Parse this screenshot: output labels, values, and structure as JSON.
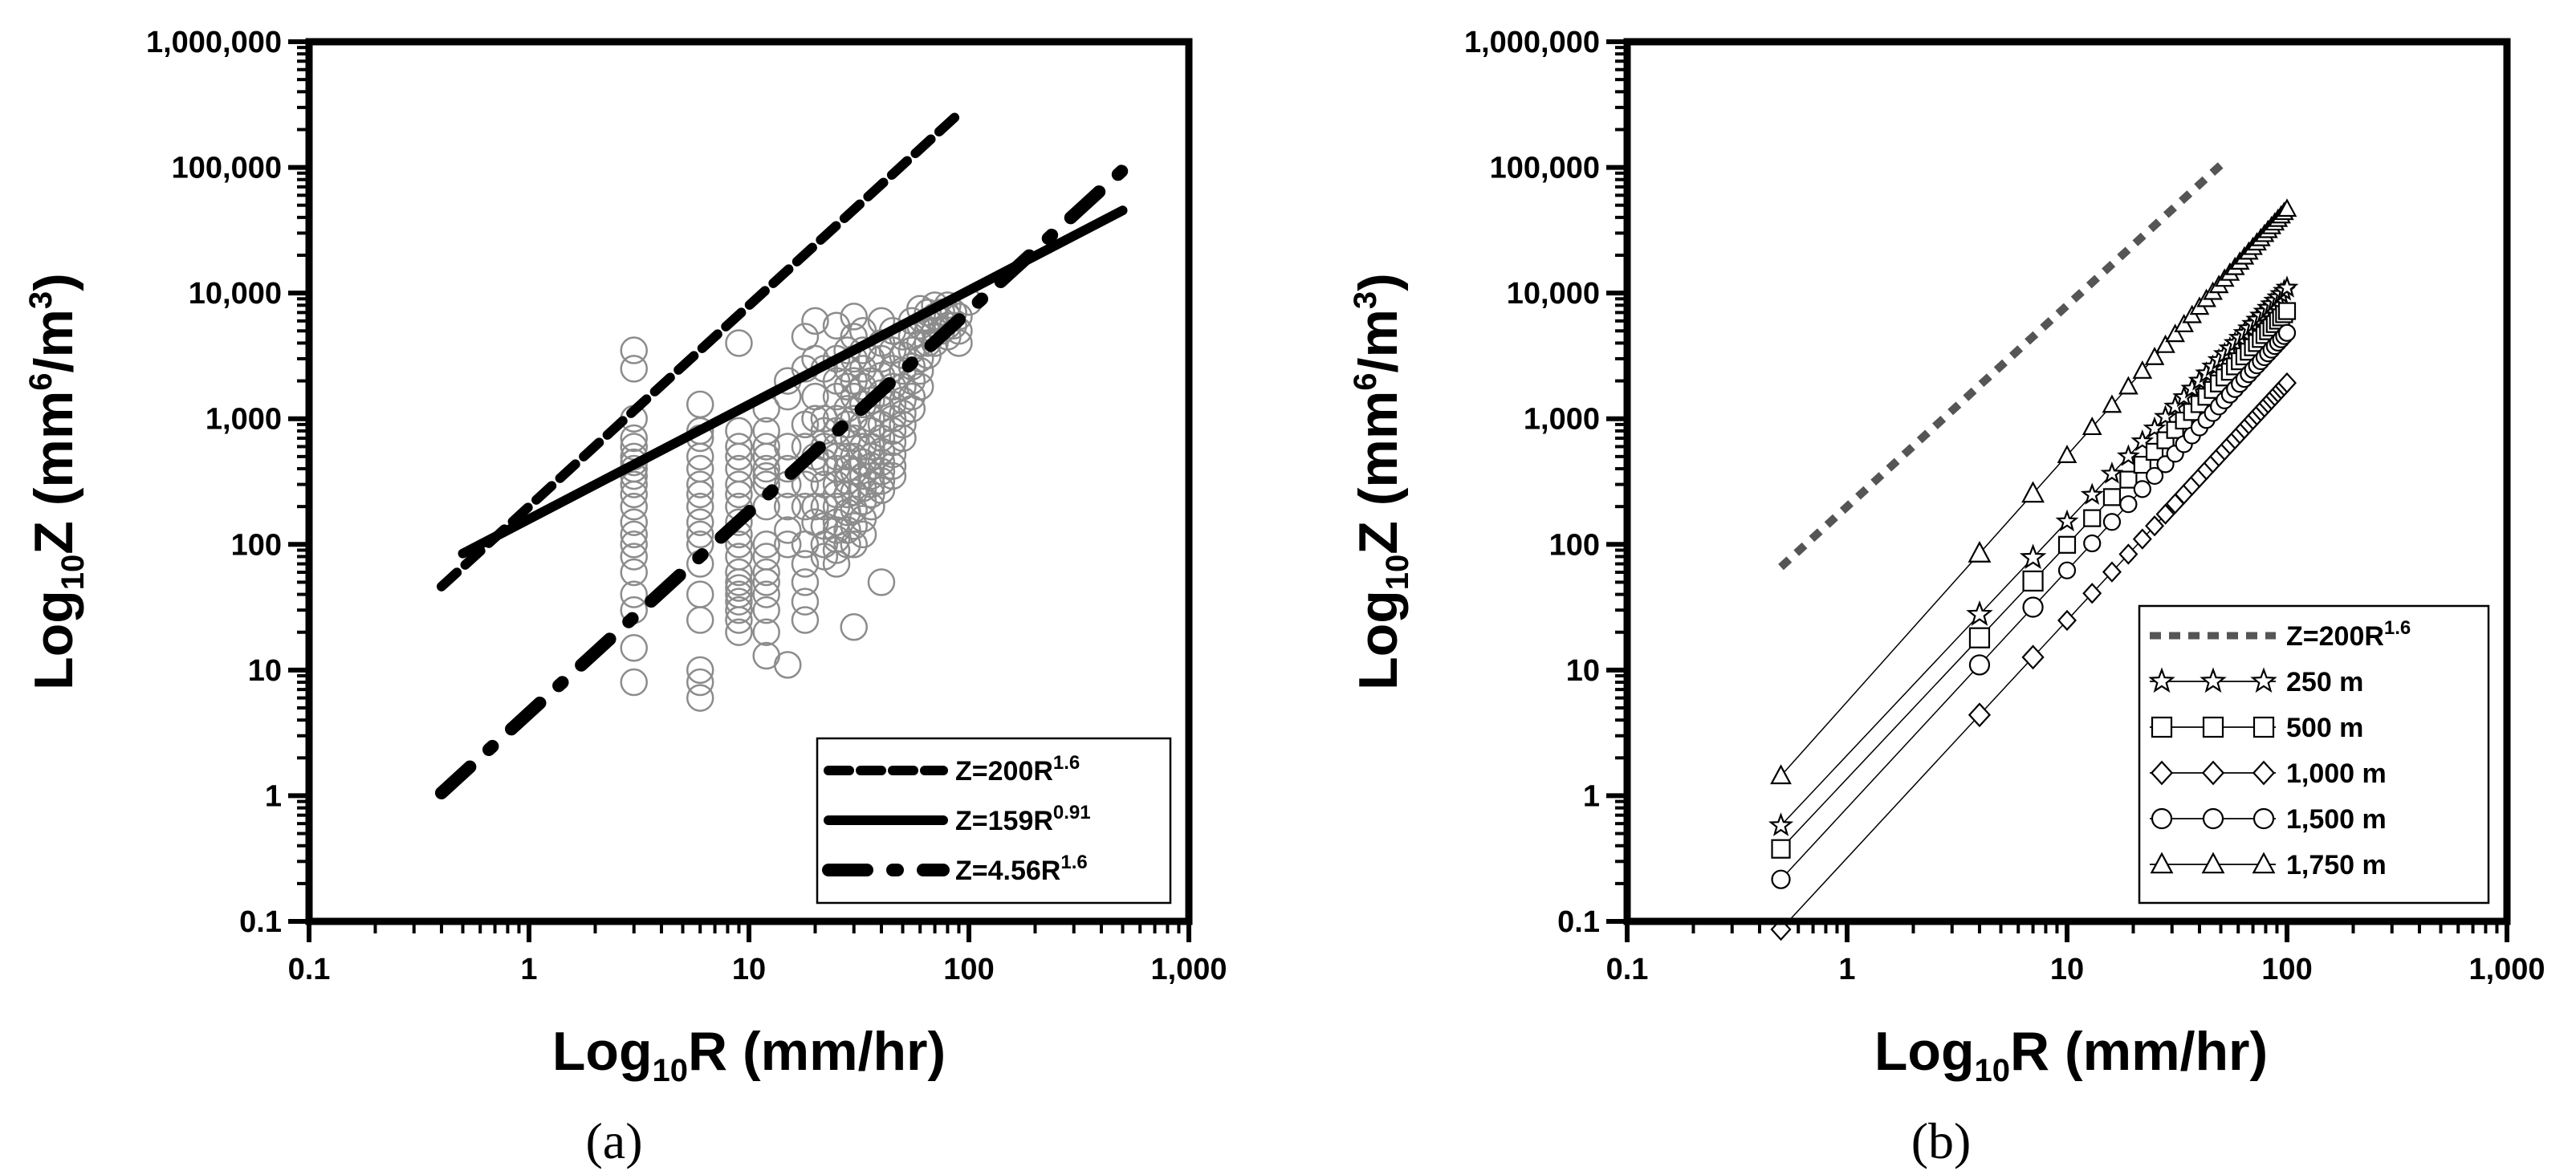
{
  "chart_data": [
    {
      "type": "scatter",
      "panel_label": "(a)",
      "xscale": "log",
      "yscale": "log",
      "xlim": [
        0.1,
        1000
      ],
      "ylim": [
        0.1,
        1000000
      ],
      "xlabel": {
        "base": "Log",
        "sub": "10",
        "rest": "R (mm/hr)"
      },
      "ylabel": {
        "base": "Log",
        "sub": "10",
        "rest1": "Z (mm",
        "sup1": "6",
        "rest2": "/m",
        "sup2": "3",
        "rest3": ")"
      },
      "x_ticks": [
        {
          "v": 0.1,
          "label": "0.1"
        },
        {
          "v": 1,
          "label": "1"
        },
        {
          "v": 10,
          "label": "10"
        },
        {
          "v": 100,
          "label": "100"
        },
        {
          "v": 1000,
          "label": "1,000"
        }
      ],
      "y_ticks": [
        {
          "v": 0.1,
          "label": "0.1"
        },
        {
          "v": 1,
          "label": "1"
        },
        {
          "v": 10,
          "label": "10"
        },
        {
          "v": 100,
          "label": "100"
        },
        {
          "v": 1000,
          "label": "1,000"
        },
        {
          "v": 10000,
          "label": "10,000"
        },
        {
          "v": 100000,
          "label": "100,000"
        },
        {
          "v": 1000000,
          "label": "1,000,000"
        }
      ],
      "legend_position": "bottom-right",
      "lines": [
        {
          "name": "Z=200R1.6",
          "label_main": "Z=200R",
          "label_sup": "1.6",
          "a": 200,
          "b": 1.6,
          "x_range": [
            0.4,
            90
          ],
          "style": "dash"
        },
        {
          "name": "Z=159R0.91",
          "label_main": "Z=159R",
          "label_sup": "0.91",
          "a": 159,
          "b": 0.91,
          "x_range": [
            0.5,
            500
          ],
          "style": "solid"
        },
        {
          "name": "Z=4.56R1.6",
          "label_main": "Z=4.56R",
          "label_sup": "1.6",
          "a": 4.56,
          "b": 1.6,
          "x_range": [
            0.4,
            500
          ],
          "style": "dashdot"
        }
      ],
      "scatter_points": [
        [
          3,
          3500
        ],
        [
          3,
          2500
        ],
        [
          3,
          1000
        ],
        [
          3,
          700
        ],
        [
          3,
          600
        ],
        [
          3,
          500
        ],
        [
          3,
          450
        ],
        [
          3,
          400
        ],
        [
          3,
          350
        ],
        [
          3,
          300
        ],
        [
          3,
          250
        ],
        [
          3,
          200
        ],
        [
          3,
          150
        ],
        [
          3,
          120
        ],
        [
          3,
          100
        ],
        [
          3,
          80
        ],
        [
          3,
          60
        ],
        [
          3,
          40
        ],
        [
          3,
          30
        ],
        [
          3,
          15
        ],
        [
          3,
          8
        ],
        [
          6,
          1300
        ],
        [
          6,
          800
        ],
        [
          6,
          700
        ],
        [
          6,
          500
        ],
        [
          6,
          400
        ],
        [
          6,
          300
        ],
        [
          6,
          250
        ],
        [
          6,
          200
        ],
        [
          6,
          150
        ],
        [
          6,
          120
        ],
        [
          6,
          100
        ],
        [
          6,
          70
        ],
        [
          6,
          40
        ],
        [
          6,
          25
        ],
        [
          6,
          10
        ],
        [
          6,
          8
        ],
        [
          6,
          6
        ],
        [
          9,
          4000
        ],
        [
          9,
          800
        ],
        [
          9,
          600
        ],
        [
          9,
          500
        ],
        [
          9,
          400
        ],
        [
          9,
          300
        ],
        [
          9,
          250
        ],
        [
          9,
          200
        ],
        [
          9,
          150
        ],
        [
          9,
          120
        ],
        [
          9,
          100
        ],
        [
          9,
          80
        ],
        [
          9,
          60
        ],
        [
          9,
          50
        ],
        [
          9,
          45
        ],
        [
          9,
          40
        ],
        [
          9,
          35
        ],
        [
          9,
          30
        ],
        [
          9,
          25
        ],
        [
          9,
          20
        ],
        [
          12,
          1200
        ],
        [
          12,
          800
        ],
        [
          12,
          600
        ],
        [
          12,
          500
        ],
        [
          12,
          400
        ],
        [
          12,
          350
        ],
        [
          12,
          300
        ],
        [
          12,
          200
        ],
        [
          12,
          100
        ],
        [
          12,
          80
        ],
        [
          12,
          60
        ],
        [
          12,
          50
        ],
        [
          12,
          40
        ],
        [
          12,
          30
        ],
        [
          12,
          20
        ],
        [
          12,
          13
        ],
        [
          15,
          2000
        ],
        [
          15,
          1500
        ],
        [
          15,
          600
        ],
        [
          15,
          400
        ],
        [
          15,
          300
        ],
        [
          15,
          200
        ],
        [
          15,
          130
        ],
        [
          15,
          100
        ],
        [
          15,
          11
        ],
        [
          18,
          4500
        ],
        [
          18,
          2500
        ],
        [
          18,
          900
        ],
        [
          18,
          600
        ],
        [
          18,
          300
        ],
        [
          18,
          200
        ],
        [
          18,
          100
        ],
        [
          18,
          70
        ],
        [
          18,
          50
        ],
        [
          18,
          35
        ],
        [
          18,
          25
        ],
        [
          20,
          6000
        ],
        [
          20,
          3000
        ],
        [
          20,
          1500
        ],
        [
          20,
          1000
        ],
        [
          20,
          500
        ],
        [
          20,
          400
        ],
        [
          20,
          200
        ],
        [
          20,
          150
        ],
        [
          22,
          2500
        ],
        [
          22,
          1000
        ],
        [
          22,
          800
        ],
        [
          22,
          600
        ],
        [
          22,
          450
        ],
        [
          22,
          300
        ],
        [
          22,
          200
        ],
        [
          22,
          140
        ],
        [
          22,
          100
        ],
        [
          22,
          80
        ],
        [
          25,
          5500
        ],
        [
          25,
          3000
        ],
        [
          25,
          2000
        ],
        [
          25,
          1500
        ],
        [
          25,
          1000
        ],
        [
          25,
          800
        ],
        [
          25,
          600
        ],
        [
          25,
          500
        ],
        [
          25,
          400
        ],
        [
          25,
          300
        ],
        [
          25,
          250
        ],
        [
          25,
          200
        ],
        [
          25,
          150
        ],
        [
          25,
          130
        ],
        [
          25,
          110
        ],
        [
          25,
          90
        ],
        [
          25,
          70
        ],
        [
          28,
          3500
        ],
        [
          28,
          2500
        ],
        [
          28,
          1800
        ],
        [
          28,
          1200
        ],
        [
          28,
          900
        ],
        [
          28,
          700
        ],
        [
          28,
          500
        ],
        [
          28,
          400
        ],
        [
          28,
          320
        ],
        [
          28,
          250
        ],
        [
          28,
          180
        ],
        [
          28,
          130
        ],
        [
          28,
          100
        ],
        [
          30,
          6500
        ],
        [
          30,
          4500
        ],
        [
          30,
          3000
        ],
        [
          30,
          2000
        ],
        [
          30,
          1500
        ],
        [
          30,
          1000
        ],
        [
          30,
          700
        ],
        [
          30,
          500
        ],
        [
          30,
          380
        ],
        [
          30,
          260
        ],
        [
          30,
          190
        ],
        [
          30,
          140
        ],
        [
          30,
          100
        ],
        [
          30,
          22
        ],
        [
          33,
          5000
        ],
        [
          33,
          3500
        ],
        [
          33,
          2500
        ],
        [
          33,
          1800
        ],
        [
          33,
          1300
        ],
        [
          33,
          900
        ],
        [
          33,
          600
        ],
        [
          33,
          450
        ],
        [
          33,
          350
        ],
        [
          33,
          280
        ],
        [
          33,
          220
        ],
        [
          33,
          160
        ],
        [
          33,
          120
        ],
        [
          36,
          3000
        ],
        [
          36,
          2000
        ],
        [
          36,
          1400
        ],
        [
          36,
          1000
        ],
        [
          36,
          800
        ],
        [
          36,
          600
        ],
        [
          36,
          500
        ],
        [
          36,
          420
        ],
        [
          36,
          350
        ],
        [
          36,
          300
        ],
        [
          36,
          250
        ],
        [
          36,
          200
        ],
        [
          40,
          6000
        ],
        [
          40,
          4000
        ],
        [
          40,
          3000
        ],
        [
          40,
          2200
        ],
        [
          40,
          1600
        ],
        [
          40,
          1200
        ],
        [
          40,
          900
        ],
        [
          40,
          700
        ],
        [
          40,
          550
        ],
        [
          40,
          450
        ],
        [
          40,
          380
        ],
        [
          40,
          320
        ],
        [
          40,
          270
        ],
        [
          40,
          50
        ],
        [
          45,
          5000
        ],
        [
          45,
          3500
        ],
        [
          45,
          2500
        ],
        [
          45,
          1800
        ],
        [
          45,
          1300
        ],
        [
          45,
          1000
        ],
        [
          45,
          800
        ],
        [
          45,
          650
        ],
        [
          45,
          520
        ],
        [
          45,
          420
        ],
        [
          45,
          350
        ],
        [
          50,
          4500
        ],
        [
          50,
          3200
        ],
        [
          50,
          2400
        ],
        [
          50,
          1800
        ],
        [
          50,
          1400
        ],
        [
          50,
          1100
        ],
        [
          50,
          900
        ],
        [
          50,
          700
        ],
        [
          55,
          6000
        ],
        [
          55,
          4500
        ],
        [
          55,
          3500
        ],
        [
          55,
          2600
        ],
        [
          55,
          2000
        ],
        [
          55,
          1500
        ],
        [
          55,
          1200
        ],
        [
          60,
          7500
        ],
        [
          60,
          5500
        ],
        [
          60,
          4000
        ],
        [
          60,
          3000
        ],
        [
          60,
          2400
        ],
        [
          60,
          1800
        ],
        [
          65,
          7000
        ],
        [
          65,
          6000
        ],
        [
          65,
          5000
        ],
        [
          65,
          4000
        ],
        [
          65,
          3200
        ],
        [
          70,
          8000
        ],
        [
          70,
          6500
        ],
        [
          70,
          5000
        ],
        [
          70,
          4000
        ],
        [
          75,
          7000
        ],
        [
          75,
          6000
        ],
        [
          75,
          5000
        ],
        [
          80,
          8000
        ],
        [
          80,
          6500
        ],
        [
          80,
          5500
        ],
        [
          80,
          4500
        ],
        [
          85,
          7000
        ],
        [
          85,
          5500
        ],
        [
          90,
          6500
        ],
        [
          90,
          5000
        ],
        [
          90,
          4000
        ],
        [
          100,
          8500
        ]
      ]
    },
    {
      "type": "line",
      "panel_label": "(b)",
      "xscale": "log",
      "yscale": "log",
      "xlim": [
        0.1,
        1000
      ],
      "ylim": [
        0.1,
        1000000
      ],
      "xlabel": {
        "base": "Log",
        "sub": "10",
        "rest": "R (mm/hr)"
      },
      "ylabel": {
        "base": "Log",
        "sub": "10",
        "rest1": "Z (mm",
        "sup1": "6",
        "rest2": "/m",
        "sup2": "3",
        "rest3": ")"
      },
      "x_ticks": [
        {
          "v": 0.1,
          "label": "0.1"
        },
        {
          "v": 1,
          "label": "1"
        },
        {
          "v": 10,
          "label": "10"
        },
        {
          "v": 100,
          "label": "100"
        },
        {
          "v": 1000,
          "label": "1,000"
        }
      ],
      "y_ticks": [
        {
          "v": 0.1,
          "label": "0.1"
        },
        {
          "v": 1,
          "label": "1"
        },
        {
          "v": 10,
          "label": "10"
        },
        {
          "v": 100,
          "label": "100"
        },
        {
          "v": 1000,
          "label": "1,000"
        },
        {
          "v": 10000,
          "label": "10,000"
        },
        {
          "v": 100000,
          "label": "100,000"
        },
        {
          "v": 1000000,
          "label": "1,000,000"
        }
      ],
      "legend_position": "bottom-right",
      "reference_line": {
        "name": "Z=200R1.6",
        "label_main": "Z=200R",
        "label_sup": "1.6",
        "a": 200,
        "b": 1.6,
        "x_range": [
          0.5,
          50
        ],
        "color": "#555555",
        "style": "dot"
      },
      "series": [
        {
          "name": "250 m",
          "marker": "star",
          "a": 2.1,
          "b": 1.86,
          "x": [
            0.5,
            4,
            7,
            10,
            13,
            16,
            19,
            22,
            25,
            28,
            31,
            34,
            37,
            40,
            43,
            46,
            49,
            52,
            55,
            58,
            61,
            64,
            67,
            70,
            73,
            76,
            79,
            82,
            85,
            88,
            91,
            94,
            97,
            100
          ]
        },
        {
          "name": "500 m",
          "marker": "square",
          "a": 1.37,
          "b": 1.86,
          "x": [
            0.5,
            4,
            7,
            10,
            13,
            16,
            19,
            22,
            25,
            28,
            31,
            34,
            37,
            40,
            43,
            46,
            49,
            52,
            55,
            58,
            61,
            64,
            67,
            70,
            73,
            76,
            79,
            82,
            85,
            88,
            91,
            94,
            97,
            100
          ]
        },
        {
          "name": "1,000 m",
          "marker": "diamond",
          "a": 0.32,
          "b": 1.89,
          "x": [
            0.5,
            4,
            7,
            10,
            13,
            16,
            19,
            22,
            25,
            28,
            31,
            34,
            37,
            40,
            43,
            46,
            49,
            52,
            55,
            58,
            61,
            64,
            67,
            70,
            73,
            76,
            79,
            82,
            85,
            88,
            91,
            94,
            97,
            100
          ]
        },
        {
          "name": "1,500 m",
          "marker": "circle",
          "a": 0.8,
          "b": 1.89,
          "x": [
            0.5,
            4,
            7,
            10,
            13,
            16,
            19,
            22,
            25,
            28,
            31,
            34,
            37,
            40,
            43,
            46,
            49,
            52,
            55,
            58,
            61,
            64,
            67,
            70,
            73,
            76,
            79,
            82,
            85,
            88,
            91,
            94,
            97,
            100
          ]
        },
        {
          "name": "1,750 m",
          "marker": "triangle",
          "a": 5.6,
          "b": 1.96,
          "x": [
            0.5,
            4,
            7,
            10,
            13,
            16,
            19,
            22,
            25,
            28,
            31,
            34,
            37,
            40,
            43,
            46,
            49,
            52,
            55,
            58,
            61,
            64,
            67,
            70,
            73,
            76,
            79,
            82,
            85,
            88,
            91,
            94,
            97,
            100
          ]
        }
      ]
    }
  ]
}
